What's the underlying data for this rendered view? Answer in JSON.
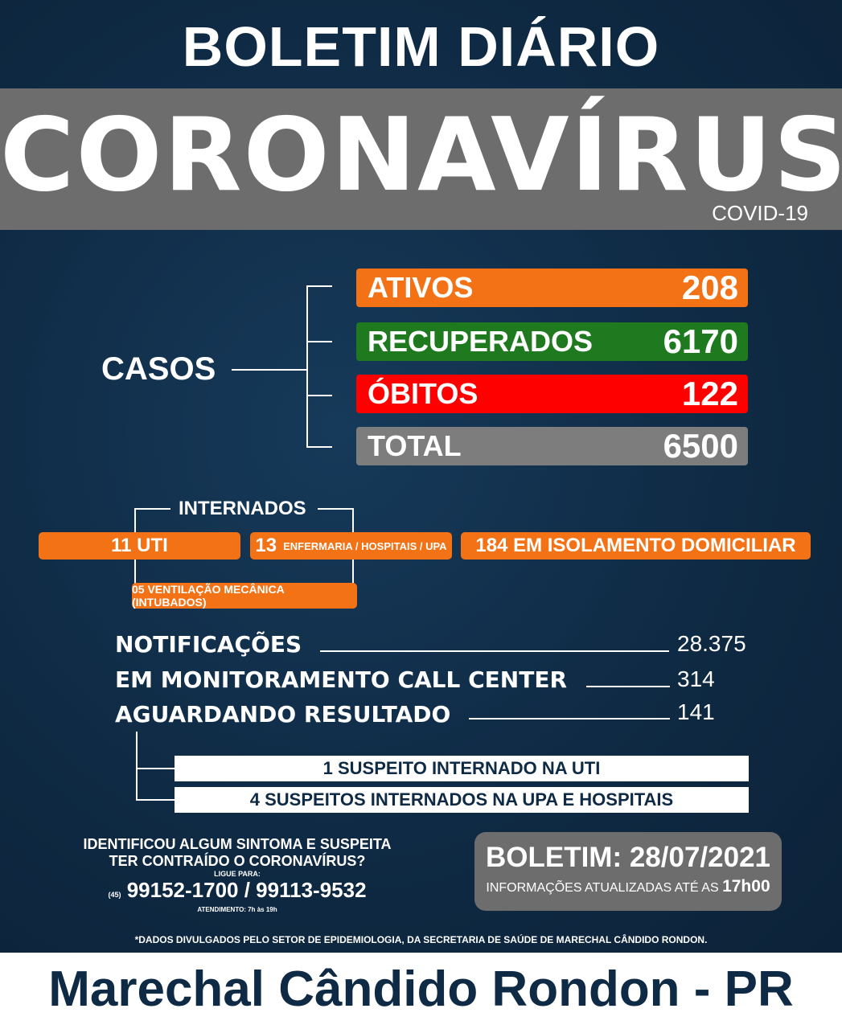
{
  "header": {
    "title": "BOLETIM DIÁRIO",
    "main_title": "CORONAVÍRUS",
    "subtitle": "COVID-19"
  },
  "casos": {
    "label": "CASOS",
    "items": [
      {
        "label": "ATIVOS",
        "value": "208",
        "color": "#f47216"
      },
      {
        "label": "RECUPERADOS",
        "value": "6170",
        "color": "#1f7a1f"
      },
      {
        "label": "ÓBITOS",
        "value": "122",
        "color": "#ff0000"
      },
      {
        "label": "TOTAL",
        "value": "6500",
        "color": "#7d7d7d"
      }
    ]
  },
  "internados": {
    "label": "INTERNADOS",
    "uti": "11 UTI",
    "enf_num": "13",
    "enf_label": "ENFERMARIA / HOSPITAIS / UPA",
    "isolamento": "184 EM ISOLAMENTO DOMICILIAR",
    "ventilacao": "05 VENTILAÇÃO MECÂNICA (INTUBADOS)"
  },
  "stats": [
    {
      "label": "NOTIFICAÇÕES",
      "value": "28.375"
    },
    {
      "label": "EM MONITORAMENTO CALL CENTER",
      "value": "314"
    },
    {
      "label": "AGUARDANDO RESULTADO",
      "value": "141"
    }
  ],
  "suspeitos": [
    "1 SUSPEITO INTERNADO NA UTI",
    "4 SUSPEITOS INTERNADOS NA UPA E HOSPITAIS"
  ],
  "contato": {
    "line1": "IDENTIFICOU ALGUM SINTOMA E SUSPEITA",
    "line2": "TER CONTRAÍDO O CORONAVÍRUS?",
    "ligue": "LIGUE PARA:",
    "ddd": "(45)",
    "phones": "99152-1700 / 99113-9532",
    "atendimento": "ATENDIMENTO: 7h às 19h"
  },
  "boletim": {
    "date": "BOLETIM: 28/07/2021",
    "info": "INFORMAÇÕES ATUALIZADAS ATÉ AS",
    "hora": "17h00"
  },
  "note": "*DADOS DIVULGADOS PELO SETOR DE EPIDEMIOLOGIA, DA SECRETARIA DE SAÚDE DE MARECHAL CÂNDIDO RONDON.",
  "footer": "Marechal Cândido Rondon - PR"
}
